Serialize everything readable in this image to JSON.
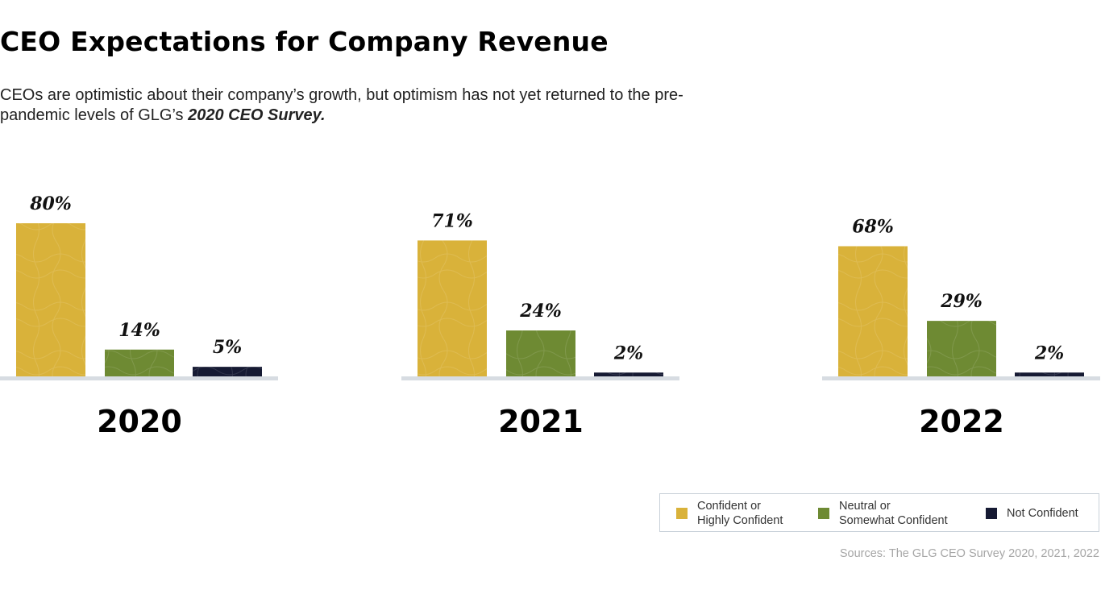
{
  "header": {
    "title": "CEO Expectations for Company Revenue",
    "subtitle_part1": "CEOs are optimistic about their company’s growth, but optimism has not yet returned to the pre-pandemic levels of GLG’s ",
    "subtitle_emphasis": "2020 CEO Survey."
  },
  "chart_data": {
    "type": "bar",
    "categories": [
      "2020",
      "2021",
      "2022"
    ],
    "series": [
      {
        "name": "Confident or Highly Confident",
        "values": [
          80,
          71,
          68
        ],
        "color": "#d9b23a"
      },
      {
        "name": "Neutral or Somewhat Confident",
        "values": [
          14,
          24,
          29
        ],
        "color": "#6e8a33"
      },
      {
        "name": "Not Confident",
        "values": [
          5,
          2,
          2
        ],
        "color": "#161a33"
      }
    ],
    "data_labels": [
      [
        "80%",
        "14%",
        "5%"
      ],
      [
        "71%",
        "24%",
        "2%"
      ],
      [
        "68%",
        "29%",
        "2%"
      ]
    ],
    "ylim": [
      0,
      100
    ],
    "grid": false,
    "legend_position": "bottom-right"
  },
  "legend": {
    "items": [
      {
        "label": "Confident or\nHighly Confident",
        "color": "#d9b23a"
      },
      {
        "label": "Neutral or\nSomewhat Confident",
        "color": "#6e8a33"
      },
      {
        "label": "Not Confident",
        "color": "#161a33"
      }
    ]
  },
  "source": "Sources: The GLG CEO Survey 2020, 2021, 2022",
  "colors": {
    "baseline": "#d7dce2"
  }
}
